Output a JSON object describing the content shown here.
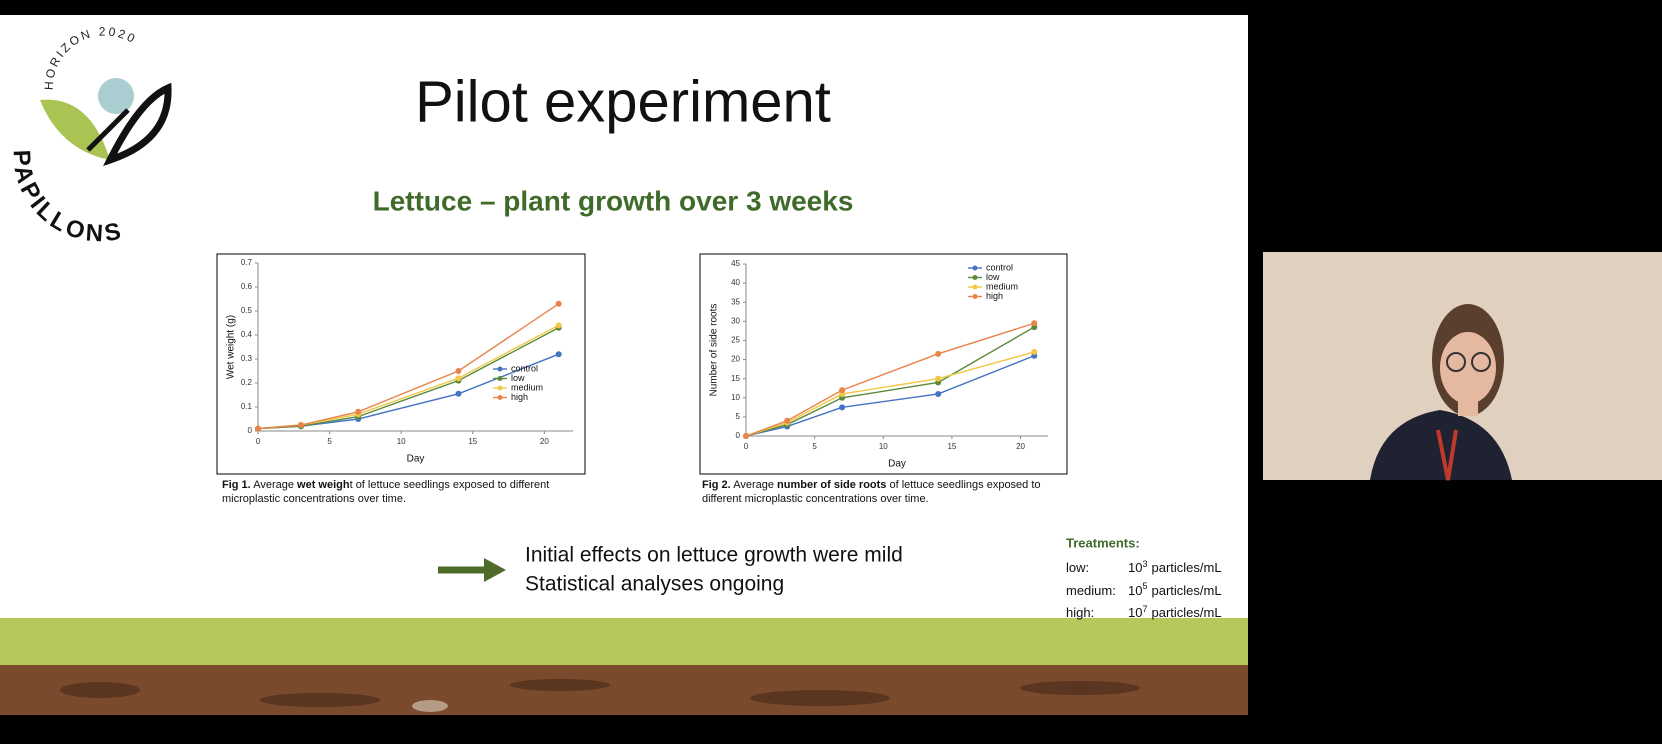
{
  "slide": {
    "logo_top": "HORIZON 2020",
    "logo_name": "PAPILLONS",
    "title": "Pilot experiment",
    "subtitle": "Lettuce – plant growth over 3 weeks",
    "captions": [
      [
        "Fig 1.",
        "Average ",
        "wet weigh",
        "t of lettuce seedlings exposed to different microplastic concentrations over time."
      ],
      [
        "Fig 2.",
        "Average ",
        "number of side roots",
        " of lettuce seedlings exposed to different microplastic concentrations over time."
      ]
    ],
    "conclusions": [
      "Initial effects on lettuce growth were mild",
      "Statistical analyses ongoing"
    ],
    "treatments_title": "Treatments:",
    "treatments": [
      {
        "label": "low:",
        "base": "10",
        "exp": "3",
        "unit": "particles/mL"
      },
      {
        "label": "medium:",
        "base": "10",
        "exp": "5",
        "unit": "particles/mL"
      },
      {
        "label": "high:",
        "base": "10",
        "exp": "7",
        "unit": "particles/mL"
      }
    ]
  },
  "chart_data": [
    {
      "type": "line",
      "x_label": "Day",
      "y_label": "Wet weight (g)",
      "x": [
        0,
        3,
        7,
        14,
        21
      ],
      "xlim": [
        0,
        22
      ],
      "xticks": [
        0,
        5,
        10,
        15,
        20
      ],
      "ylim": [
        0,
        0.7
      ],
      "yticks": [
        0,
        0.1,
        0.2,
        0.3,
        0.4,
        0.5,
        0.6,
        0.7
      ],
      "legend": "lower right",
      "series": [
        {
          "name": "control",
          "color": "#4472c4",
          "values": [
            0.01,
            0.02,
            0.05,
            0.155,
            0.32
          ]
        },
        {
          "name": "low",
          "color": "#5a8a3a",
          "values": [
            0.01,
            0.02,
            0.06,
            0.21,
            0.43
          ]
        },
        {
          "name": "medium",
          "color": "#f2c744",
          "values": [
            0.01,
            0.025,
            0.07,
            0.22,
            0.44
          ]
        },
        {
          "name": "high",
          "color": "#e8834a",
          "values": [
            0.01,
            0.025,
            0.08,
            0.25,
            0.53
          ]
        }
      ]
    },
    {
      "type": "line",
      "x_label": "Day",
      "y_label": "Number of side roots",
      "x": [
        0,
        3,
        7,
        14,
        21
      ],
      "xlim": [
        0,
        22
      ],
      "xticks": [
        0,
        5,
        10,
        15,
        20
      ],
      "ylim": [
        0,
        45
      ],
      "yticks": [
        0,
        5,
        10,
        15,
        20,
        25,
        30,
        35,
        40,
        45
      ],
      "legend": "upper right",
      "series": [
        {
          "name": "control",
          "color": "#4472c4",
          "values": [
            0,
            2.5,
            7.5,
            11,
            21
          ]
        },
        {
          "name": "low",
          "color": "#5a8a3a",
          "values": [
            0,
            3,
            10,
            14,
            28.5
          ]
        },
        {
          "name": "medium",
          "color": "#f2c744",
          "values": [
            0,
            3.5,
            11,
            15,
            22
          ]
        },
        {
          "name": "high",
          "color": "#e8834a",
          "values": [
            0,
            4,
            12,
            21.5,
            29.5
          ]
        }
      ]
    }
  ]
}
